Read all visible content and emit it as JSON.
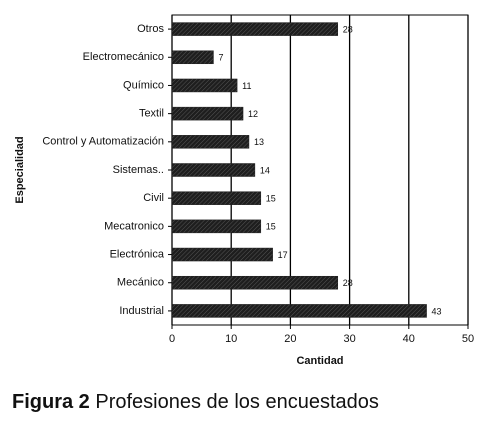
{
  "chart_data": {
    "type": "barh",
    "categories": [
      "Otros",
      "Electromecánico",
      "Químico",
      "Textil",
      "Control y Automatización",
      "Sistemas..",
      "Civil",
      "Mecatronico",
      "Electrónica",
      "Mecánico",
      "Industrial"
    ],
    "values": [
      28,
      7,
      11,
      12,
      13,
      14,
      15,
      15,
      17,
      28,
      43
    ],
    "color": "#1e1e1e",
    "xlim": [
      0,
      50
    ],
    "xticks": [
      0,
      10,
      20,
      30,
      40,
      50
    ],
    "grid": true,
    "x_label": "Cantidad",
    "y_label": "Especialidad"
  },
  "caption": {
    "figure_label": "Figura 2",
    "text": "Profesiones de los encuestados"
  }
}
